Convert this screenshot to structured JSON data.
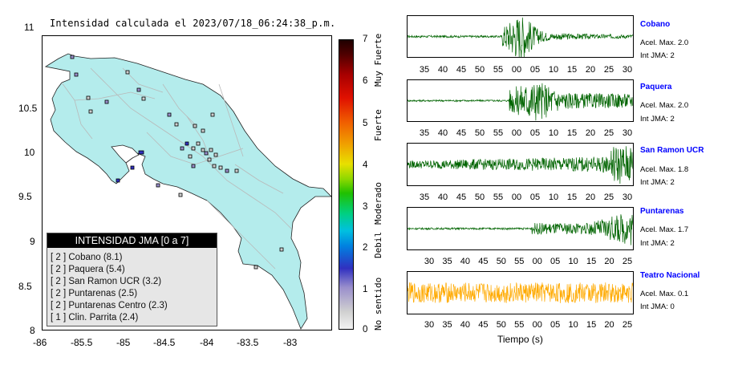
{
  "map": {
    "title": "Intensidad calculada el 2023/07/18_06:24:38_p.m.",
    "y_ticks": [
      "11",
      "10.5",
      "10",
      "9.5",
      "9",
      "8.5",
      "8"
    ],
    "x_ticks": [
      "-86",
      "-85.5",
      "-85",
      "-84.5",
      "-84",
      "-83.5",
      "-83"
    ],
    "legend_title": "INTENSIDAD JMA [0 a 7]",
    "legend_rows": [
      "[ 2 ] Cobano (8.1)",
      "[ 2 ] Paquera (5.4)",
      "[ 2 ] San Ramon UCR (3.2)",
      "[ 2 ] Puntarenas (2.5)",
      "[ 2 ] Puntarenas Centro (2.3)",
      "[ 1 ] Clin. Parrita (2.4)"
    ],
    "land_color": "#b4ecec"
  },
  "colorbar": {
    "ticks": [
      "7",
      "6",
      "5",
      "4",
      "3",
      "2",
      "1",
      "0"
    ],
    "labels": [
      "Muy Fuerte",
      "Fuerte",
      "Moderado",
      "Debil",
      "No sentido"
    ]
  },
  "stations": [
    {
      "name": "Cobano",
      "acel": "Acel. Max. 2.0",
      "int": "Int JMA: 2",
      "color": "#006400",
      "ticks": [
        "35",
        "40",
        "45",
        "50",
        "55",
        "00",
        "05",
        "10",
        "15",
        "20",
        "25",
        "30"
      ]
    },
    {
      "name": "Paquera",
      "acel": "Acel. Max. 2.0",
      "int": "Int JMA: 2",
      "color": "#006400",
      "ticks": [
        "35",
        "40",
        "45",
        "50",
        "55",
        "00",
        "05",
        "10",
        "15",
        "20",
        "25",
        "30"
      ]
    },
    {
      "name": "San Ramon UCR",
      "acel": "Acel. Max. 1.8",
      "int": "Int JMA: 2",
      "color": "#006400",
      "ticks": [
        "35",
        "40",
        "45",
        "50",
        "55",
        "00",
        "05",
        "10",
        "15",
        "20",
        "25",
        "30"
      ]
    },
    {
      "name": "Puntarenas",
      "acel": "Acel. Max. 1.7",
      "int": "Int JMA: 2",
      "color": "#006400",
      "ticks": [
        "30",
        "35",
        "40",
        "45",
        "50",
        "55",
        "00",
        "05",
        "10",
        "15",
        "20",
        "25"
      ]
    },
    {
      "name": "Teatro Nacional",
      "acel": "Acel. Max. 0.1",
      "int": "Int JMA: 0",
      "color": "#ffaa00",
      "ticks": [
        "30",
        "35",
        "40",
        "45",
        "50",
        "55",
        "00",
        "05",
        "10",
        "15",
        "20",
        "25"
      ]
    }
  ],
  "time_label": "Tiempo (s)"
}
